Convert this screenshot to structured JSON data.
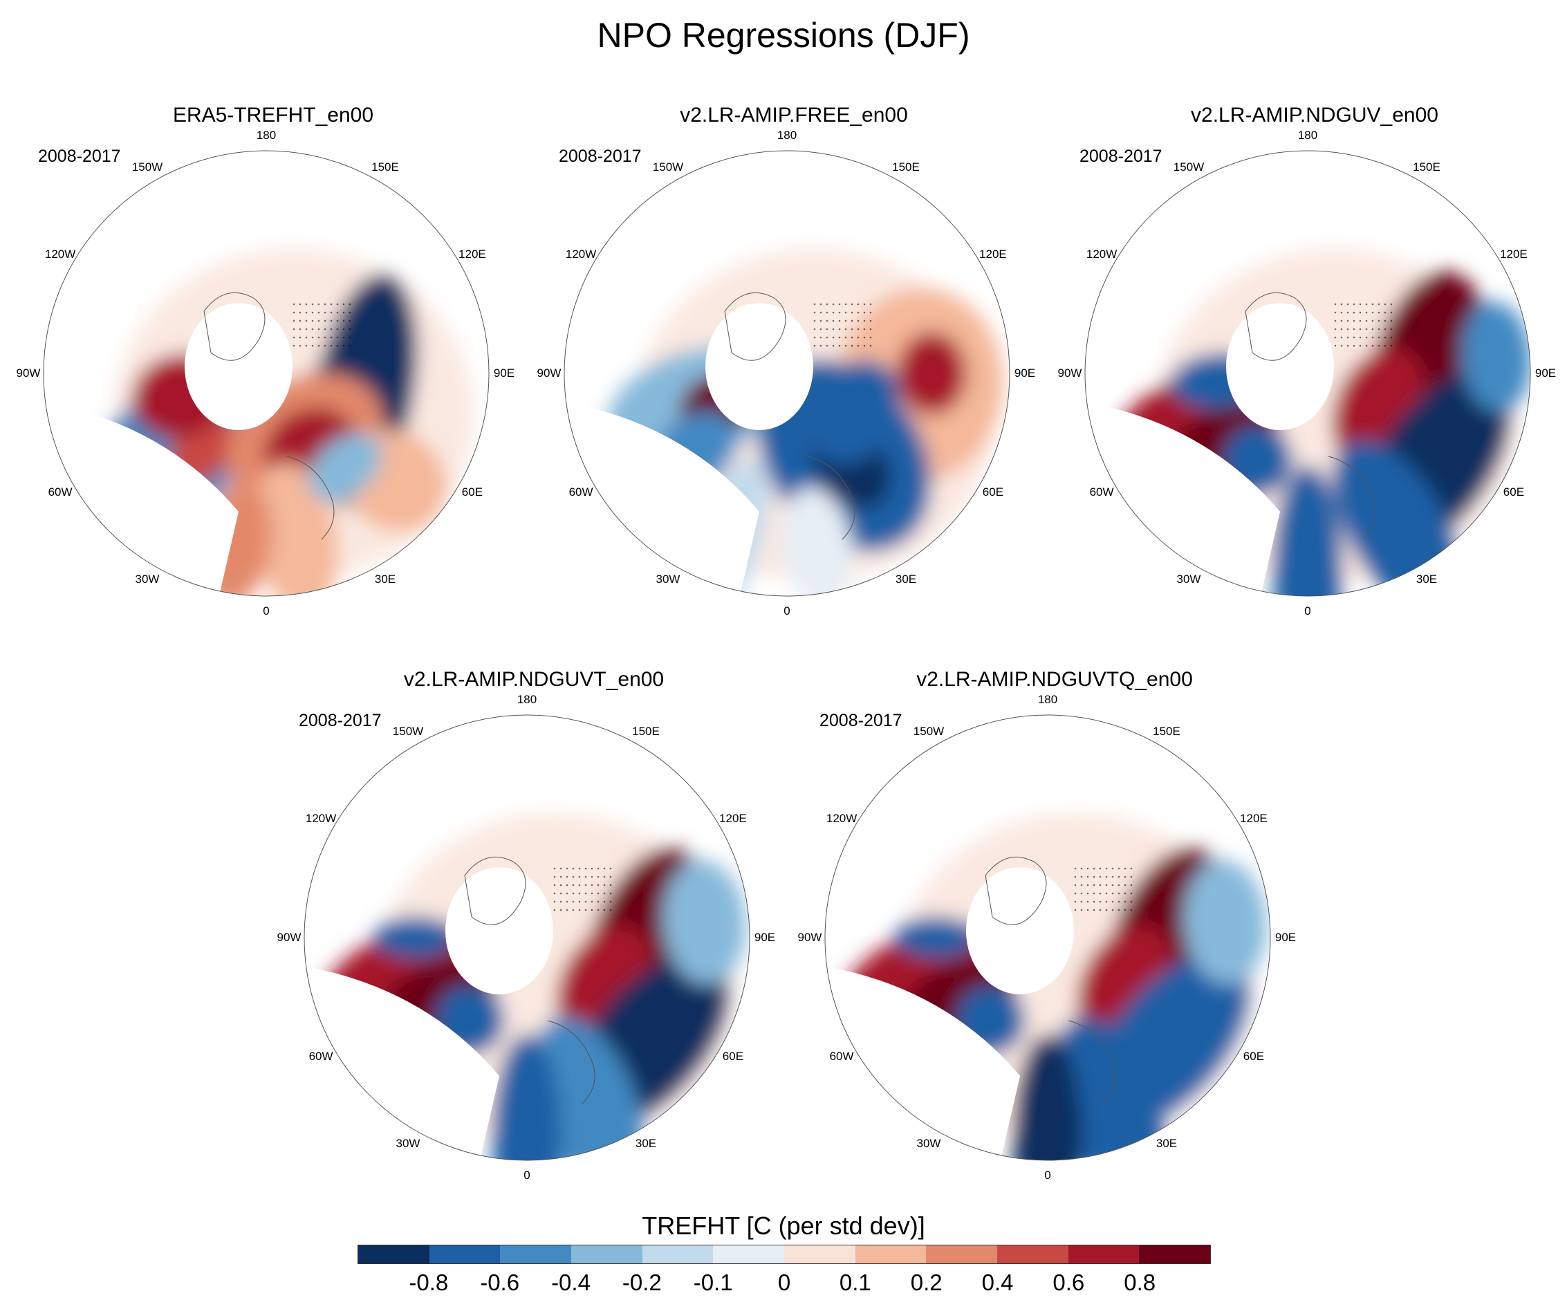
{
  "title": "NPO Regressions (DJF)",
  "panels": [
    {
      "title": "ERA5-TREFHT_en00",
      "period": "2008-2017",
      "pattern": "era5"
    },
    {
      "title": "v2.LR-AMIP.FREE_en00",
      "period": "2008-2017",
      "pattern": "free"
    },
    {
      "title": "v2.LR-AMIP.NDGUV_en00",
      "period": "2008-2017",
      "pattern": "nduv"
    },
    {
      "title": "v2.LR-AMIP.NDGUVT_en00",
      "period": "2008-2017",
      "pattern": "nduvt"
    },
    {
      "title": "v2.LR-AMIP.NDGUVTQ_en00",
      "period": "2008-2017",
      "pattern": "nduvtq"
    }
  ],
  "lon_labels": [
    "180",
    "150E",
    "120E",
    "90E",
    "60E",
    "30E",
    "0",
    "30W",
    "60W",
    "90W",
    "120W",
    "150W"
  ],
  "colorbar": {
    "title": "TREFHT [C (per std dev)]",
    "colors": [
      "#0a2f5f",
      "#1f5fa5",
      "#4389c2",
      "#86b9da",
      "#c2dbec",
      "#e7eef4",
      "#f9e3d9",
      "#f4b89a",
      "#e3896b",
      "#c84842",
      "#a5182b",
      "#6b0019"
    ],
    "ticks": [
      "-0.8",
      "-0.6",
      "-0.4",
      "-0.2",
      "-0.1",
      "0",
      "0.1",
      "0.2",
      "0.4",
      "0.6",
      "0.8"
    ]
  }
}
